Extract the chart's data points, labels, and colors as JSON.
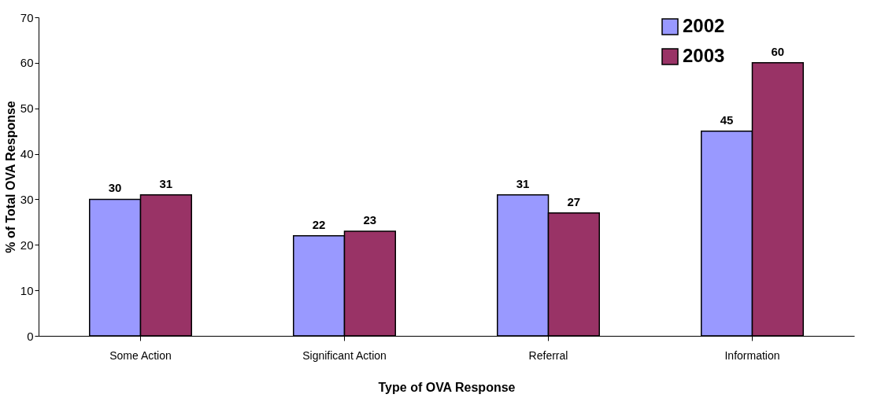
{
  "chart_data": {
    "type": "bar",
    "xlabel": "Type of OVA Response",
    "ylabel": "%  of Total OVA Response",
    "categories": [
      "Some Action",
      "Significant Action",
      "Referral",
      "Information"
    ],
    "series": [
      {
        "name": "2002",
        "color": "#9999ff",
        "values": [
          30,
          22,
          31,
          45
        ]
      },
      {
        "name": "2003",
        "color": "#993366",
        "values": [
          31,
          23,
          27,
          60
        ]
      }
    ],
    "ylim": [
      0,
      70
    ],
    "yticks": [
      0,
      10,
      20,
      30,
      40,
      50,
      60,
      70
    ],
    "grid": false,
    "legend": "top right",
    "data_labels": true
  }
}
